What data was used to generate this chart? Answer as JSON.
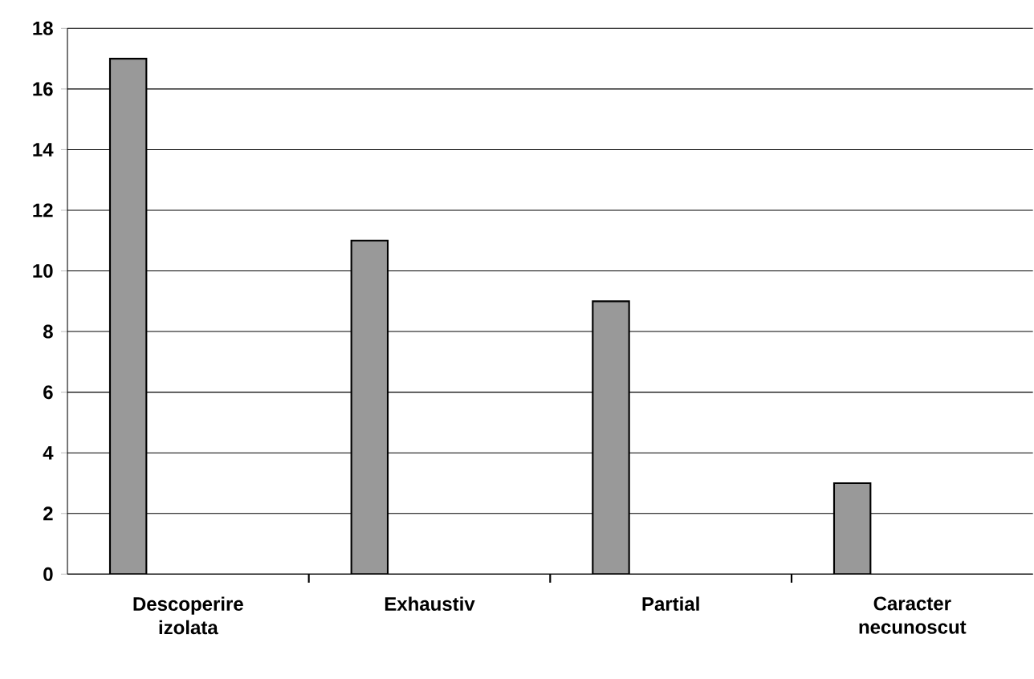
{
  "chart_data": {
    "type": "bar",
    "categories": [
      "Descoperire izolata",
      "Exhaustiv",
      "Partial",
      "Caracter necunoscut"
    ],
    "values": [
      17,
      11,
      9,
      3
    ],
    "color": "#999999",
    "ylim": [
      0,
      18
    ],
    "yticks": [
      0,
      2,
      4,
      6,
      8,
      10,
      12,
      14,
      16,
      18
    ],
    "grid": "y"
  }
}
